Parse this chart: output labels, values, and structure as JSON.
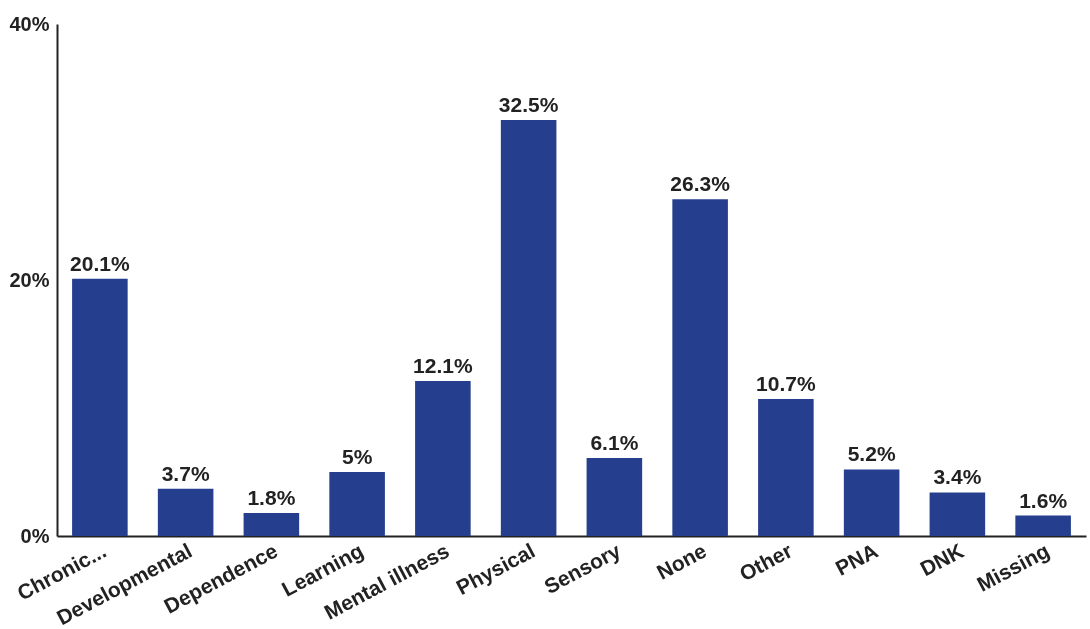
{
  "chart_data": {
    "type": "bar",
    "categories": [
      "Chronic...",
      "Developmental",
      "Dependence",
      "Learning",
      "Mental illness",
      "Physical",
      "Sensory",
      "None",
      "Other",
      "PNA",
      "DNK",
      "Missing"
    ],
    "values": [
      20.1,
      3.7,
      1.8,
      5,
      12.1,
      32.5,
      6.1,
      26.3,
      10.7,
      5.2,
      3.4,
      1.6
    ],
    "value_labels": [
      "20.1%",
      "3.7%",
      "1.8%",
      "5%",
      "12.1%",
      "32.5%",
      "6.1%",
      "26.3%",
      "10.7%",
      "5.2%",
      "3.4%",
      "1.6%"
    ],
    "color": "#253f8e",
    "ylim": [
      0,
      40
    ],
    "yticks": [
      {
        "value": 0,
        "label": "0%"
      },
      {
        "value": 20,
        "label": "20%"
      },
      {
        "value": 40,
        "label": "40%"
      }
    ],
    "grid": false
  }
}
